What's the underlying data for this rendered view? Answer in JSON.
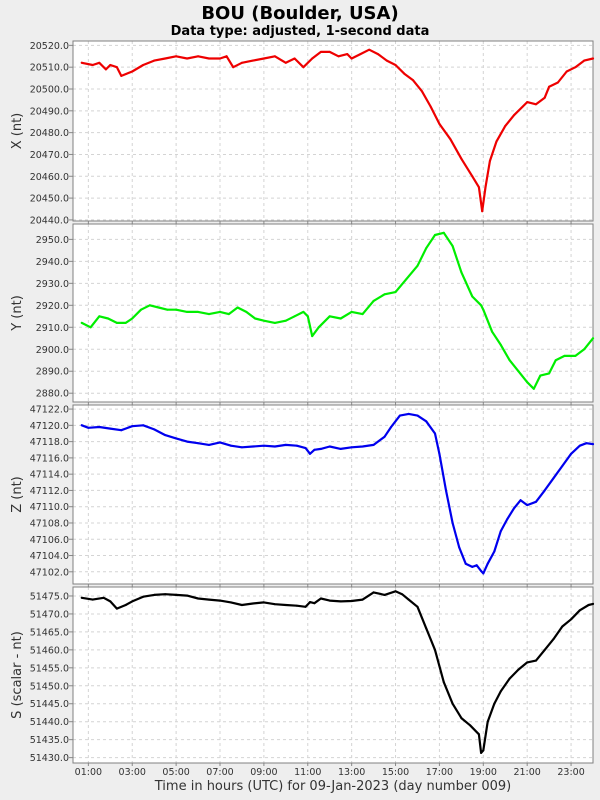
{
  "chart_data": {
    "type": "line",
    "title": "BOU (Boulder, USA)",
    "subtitle": "Data type: adjusted, 1-second data",
    "xlabel": "Time in hours (UTC) for 09-Jan-2023 (day number 009)",
    "xticks": [
      "01:00",
      "03:00",
      "05:00",
      "07:00",
      "09:00",
      "11:00",
      "13:00",
      "15:00",
      "17:00",
      "19:00",
      "21:00",
      "23:00"
    ],
    "xlim": [
      0.3,
      24.0
    ],
    "grid": true,
    "panels": [
      {
        "ylabel": "X (nt)",
        "color": "#ee0000",
        "ylim": [
          20439.5,
          20522
        ],
        "yticks": [
          20440.0,
          20450.0,
          20460.0,
          20470.0,
          20480.0,
          20490.0,
          20500.0,
          20510.0,
          20520.0
        ],
        "x": [
          0.7,
          1.2,
          1.5,
          1.8,
          2.0,
          2.3,
          2.5,
          3.0,
          3.5,
          4.0,
          4.5,
          5.0,
          5.5,
          6.0,
          6.5,
          7.0,
          7.3,
          7.6,
          8.0,
          8.5,
          9.0,
          9.5,
          10.0,
          10.4,
          10.8,
          11.2,
          11.6,
          12.0,
          12.4,
          12.8,
          13.0,
          13.4,
          13.8,
          14.2,
          14.6,
          15.0,
          15.4,
          15.8,
          16.2,
          16.6,
          17.0,
          17.5,
          18.0,
          18.5,
          18.8,
          18.95,
          19.1,
          19.3,
          19.6,
          20.0,
          20.4,
          20.8,
          21.0,
          21.4,
          21.8,
          22.0,
          22.4,
          22.8,
          23.2,
          23.6,
          24.0
        ],
        "values": [
          20512,
          20511,
          20512,
          20509,
          20511,
          20510,
          20506,
          20508,
          20511,
          20513,
          20514,
          20515,
          20514,
          20515,
          20514,
          20514,
          20515,
          20510,
          20512,
          20513,
          20514,
          20515,
          20512,
          20514,
          20510,
          20514,
          20517,
          20517,
          20515,
          20516,
          20514,
          20516,
          20518,
          20516,
          20513,
          20511,
          20507,
          20504,
          20499,
          20492,
          20484,
          20477,
          20468,
          20460,
          20455,
          20444,
          20455,
          20467,
          20476,
          20483,
          20488,
          20492,
          20494,
          20493,
          20496,
          20501,
          20503,
          20508,
          20510,
          20513,
          20514
        ]
      },
      {
        "ylabel": "Y (nt)",
        "color": "#00ee00",
        "ylim": [
          2876,
          2957
        ],
        "yticks": [
          2880.0,
          2890.0,
          2900.0,
          2910.0,
          2920.0,
          2930.0,
          2940.0,
          2950.0
        ],
        "x": [
          0.7,
          1.1,
          1.5,
          1.9,
          2.3,
          2.7,
          3.0,
          3.4,
          3.8,
          4.2,
          4.6,
          5.0,
          5.5,
          6.0,
          6.5,
          7.0,
          7.4,
          7.8,
          8.2,
          8.6,
          9.0,
          9.5,
          10.0,
          10.4,
          10.8,
          11.0,
          11.2,
          11.5,
          12.0,
          12.5,
          13.0,
          13.5,
          14.0,
          14.5,
          15.0,
          15.5,
          16.0,
          16.4,
          16.8,
          17.2,
          17.6,
          18.0,
          18.5,
          18.9,
          19.0,
          19.4,
          19.8,
          20.2,
          20.6,
          21.0,
          21.3,
          21.6,
          22.0,
          22.3,
          22.7,
          23.2,
          23.6,
          24.0
        ],
        "values": [
          2912,
          2910,
          2915,
          2914,
          2912,
          2912,
          2914,
          2918,
          2920,
          2919,
          2918,
          2918,
          2917,
          2917,
          2916,
          2917,
          2916,
          2919,
          2917,
          2914,
          2913,
          2912,
          2913,
          2915,
          2917,
          2915,
          2906,
          2910,
          2915,
          2914,
          2917,
          2916,
          2922,
          2925,
          2926,
          2932,
          2938,
          2946,
          2952,
          2953,
          2947,
          2935,
          2924,
          2920,
          2918,
          2908,
          2902,
          2895,
          2890,
          2885,
          2882,
          2888,
          2889,
          2895,
          2897,
          2897,
          2900,
          2905
        ]
      },
      {
        "ylabel": "Z (nt)",
        "color": "#0000ee",
        "ylim": [
          47100.5,
          47122.5
        ],
        "yticks": [
          47102.0,
          47104.0,
          47106.0,
          47108.0,
          47110.0,
          47112.0,
          47114.0,
          47116.0,
          47118.0,
          47120.0,
          47122.0
        ],
        "x": [
          0.7,
          1.0,
          1.5,
          2.0,
          2.5,
          3.0,
          3.5,
          4.0,
          4.5,
          5.0,
          5.5,
          6.0,
          6.5,
          7.0,
          7.5,
          8.0,
          8.5,
          9.0,
          9.5,
          10.0,
          10.5,
          10.9,
          11.1,
          11.3,
          11.6,
          12.0,
          12.5,
          13.0,
          13.5,
          14.0,
          14.5,
          14.8,
          15.2,
          15.6,
          16.0,
          16.4,
          16.8,
          17.0,
          17.3,
          17.6,
          17.9,
          18.2,
          18.5,
          18.7,
          18.9,
          19.0,
          19.2,
          19.5,
          19.8,
          20.1,
          20.4,
          20.7,
          21.0,
          21.4,
          21.8,
          22.2,
          22.6,
          23.0,
          23.4,
          23.7,
          24.0
        ],
        "values": [
          47120.0,
          47119.7,
          47119.8,
          47119.6,
          47119.4,
          47119.9,
          47120.0,
          47119.5,
          47118.8,
          47118.4,
          47118.0,
          47117.8,
          47117.6,
          47117.9,
          47117.5,
          47117.3,
          47117.4,
          47117.5,
          47117.4,
          47117.6,
          47117.5,
          47117.2,
          47116.5,
          47117.0,
          47117.1,
          47117.4,
          47117.1,
          47117.3,
          47117.4,
          47117.6,
          47118.6,
          47119.8,
          47121.2,
          47121.4,
          47121.2,
          47120.5,
          47119.0,
          47116.5,
          47112.0,
          47108.0,
          47105.0,
          47103.0,
          47102.6,
          47102.8,
          47102.1,
          47101.8,
          47103.0,
          47104.5,
          47107.0,
          47108.5,
          47109.8,
          47110.8,
          47110.2,
          47110.6,
          47112.0,
          47113.5,
          47115.0,
          47116.5,
          47117.5,
          47117.8,
          47117.7
        ]
      },
      {
        "ylabel": "S (scalar - nt)",
        "color": "#000000",
        "ylim": [
          51428.5,
          51477.5
        ],
        "yticks": [
          51430.0,
          51435.0,
          51440.0,
          51445.0,
          51450.0,
          51455.0,
          51460.0,
          51465.0,
          51470.0,
          51475.0
        ],
        "x": [
          0.7,
          1.2,
          1.7,
          2.0,
          2.3,
          2.7,
          3.0,
          3.5,
          4.0,
          4.5,
          5.0,
          5.5,
          6.0,
          6.5,
          7.0,
          7.5,
          8.0,
          8.5,
          9.0,
          9.5,
          10.0,
          10.5,
          10.9,
          11.1,
          11.3,
          11.6,
          12.0,
          12.5,
          13.0,
          13.5,
          14.0,
          14.5,
          15.0,
          15.3,
          15.6,
          16.0,
          16.4,
          16.8,
          17.2,
          17.6,
          18.0,
          18.4,
          18.8,
          18.9,
          19.0,
          19.2,
          19.5,
          19.8,
          20.2,
          20.6,
          21.0,
          21.4,
          21.8,
          22.2,
          22.6,
          23.0,
          23.4,
          23.8,
          24.0
        ],
        "values": [
          51474.5,
          51474.0,
          51474.5,
          51473.5,
          51471.5,
          51472.5,
          51473.5,
          51474.8,
          51475.3,
          51475.5,
          51475.3,
          51475.1,
          51474.3,
          51474.0,
          51473.7,
          51473.2,
          51472.5,
          51472.9,
          51473.2,
          51472.7,
          51472.5,
          51472.3,
          51472.0,
          51473.3,
          51473.0,
          51474.3,
          51473.7,
          51473.5,
          51473.6,
          51474.0,
          51476.0,
          51475.3,
          51476.3,
          51475.5,
          51474.0,
          51472.0,
          51466.0,
          51460.0,
          51451.0,
          51445.0,
          51441.0,
          51439.0,
          51436.5,
          51431.3,
          51432.0,
          51440.0,
          51445.0,
          51448.5,
          51452.0,
          51454.5,
          51456.5,
          51457.0,
          51460.0,
          51463.0,
          51466.5,
          51468.5,
          51471.0,
          51472.5,
          51472.8
        ]
      }
    ]
  }
}
